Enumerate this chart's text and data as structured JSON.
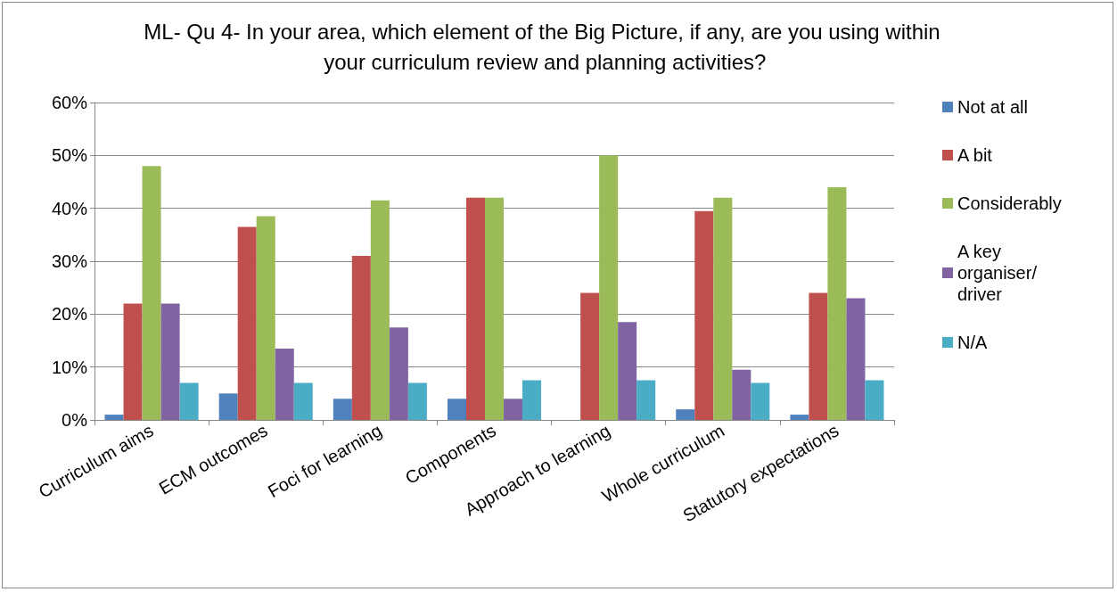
{
  "chart_data": {
    "type": "bar",
    "title": "ML- Qu 4- In your area, which element of the Big Picture, if any, are you using within your curriculum review and planning activities?",
    "categories": [
      "Curriculum aims",
      "ECM outcomes",
      "Foci for learning",
      "Components",
      "Approach to learning",
      "Whole curriculum",
      "Statutory expectations"
    ],
    "series": [
      {
        "name": "Not at all",
        "color": "#4f81bd",
        "values": [
          1,
          5,
          4,
          4,
          0,
          2,
          1
        ]
      },
      {
        "name": "A bit",
        "color": "#c0504d",
        "values": [
          22,
          36.5,
          31,
          42,
          24,
          39.5,
          24
        ]
      },
      {
        "name": "Considerably",
        "color": "#9bbb59",
        "values": [
          48,
          38.5,
          41.5,
          42,
          50,
          42,
          44
        ]
      },
      {
        "name": "A key organiser/driver",
        "color": "#8064a2",
        "values": [
          22,
          13.5,
          17.5,
          4,
          18.5,
          9.5,
          23
        ]
      },
      {
        "name": "N/A",
        "color": "#4bacc6",
        "values": [
          7,
          7,
          7,
          7.5,
          7.5,
          7,
          7.5
        ]
      }
    ],
    "ylim": [
      0,
      60
    ],
    "yticks": [
      {
        "value": 0,
        "label": "0%"
      },
      {
        "value": 10,
        "label": "10%"
      },
      {
        "value": 20,
        "label": "20%"
      },
      {
        "value": 30,
        "label": "30%"
      },
      {
        "value": 40,
        "label": "40%"
      },
      {
        "value": 50,
        "label": "50%"
      },
      {
        "value": 60,
        "label": "60%"
      }
    ],
    "grid": true,
    "legend": "right"
  }
}
